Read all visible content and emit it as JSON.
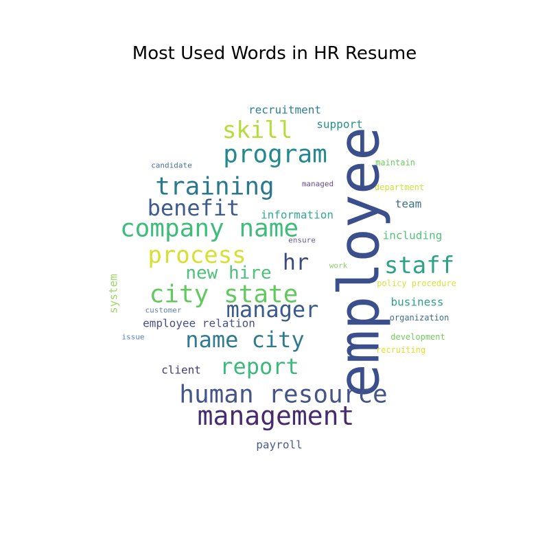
{
  "chart_data": {
    "type": "wordcloud",
    "title": "Most Used Words in HR Resume",
    "words": [
      {
        "text": "employee",
        "weight": 100,
        "color": "#3b4f8c",
        "rotated": true
      },
      {
        "text": "management",
        "weight": 52,
        "color": "#482a6e",
        "rotated": false
      },
      {
        "text": "human resource",
        "weight": 50,
        "color": "#45558a",
        "rotated": false
      },
      {
        "text": "company name",
        "weight": 50,
        "color": "#3ebd7a",
        "rotated": false
      },
      {
        "text": "program",
        "weight": 50,
        "color": "#23898e",
        "rotated": false
      },
      {
        "text": "training",
        "weight": 50,
        "color": "#2a788e",
        "rotated": false
      },
      {
        "text": "city state",
        "weight": 50,
        "color": "#61c95e",
        "rotated": false
      },
      {
        "text": "staff",
        "weight": 48,
        "color": "#2ca386",
        "rotated": false
      },
      {
        "text": "process",
        "weight": 47,
        "color": "#d6e032",
        "rotated": false
      },
      {
        "text": "skill",
        "weight": 46,
        "color": "#b6dc3a",
        "rotated": false
      },
      {
        "text": "manager",
        "weight": 46,
        "color": "#3a5a8c",
        "rotated": false
      },
      {
        "text": "report",
        "weight": 46,
        "color": "#3cba7c",
        "rotated": false
      },
      {
        "text": "name city",
        "weight": 46,
        "color": "#2f7a90",
        "rotated": false
      },
      {
        "text": "benefit",
        "weight": 44,
        "color": "#3d5b8f",
        "rotated": false
      },
      {
        "text": "hr",
        "weight": 44,
        "color": "#3b4a7c",
        "rotated": false
      },
      {
        "text": "new hire",
        "weight": 34,
        "color": "#4fc07a",
        "rotated": false
      },
      {
        "text": "employee relation",
        "weight": 24,
        "color": "#4a4f83",
        "rotated": false
      },
      {
        "text": "information",
        "weight": 22,
        "color": "#34a891",
        "rotated": false
      },
      {
        "text": "recruitment",
        "weight": 22,
        "color": "#2d7f8f",
        "rotated": false
      },
      {
        "text": "support",
        "weight": 21,
        "color": "#22928a",
        "rotated": false
      },
      {
        "text": "including",
        "weight": 21,
        "color": "#54c27a",
        "rotated": false
      },
      {
        "text": "business",
        "weight": 21,
        "color": "#2aa08a",
        "rotated": false
      },
      {
        "text": "payroll",
        "weight": 21,
        "color": "#4a5a90",
        "rotated": false
      },
      {
        "text": "client",
        "weight": 20,
        "color": "#443a70",
        "rotated": false
      },
      {
        "text": "team",
        "weight": 20,
        "color": "#3d6e8e",
        "rotated": false
      },
      {
        "text": "system",
        "weight": 19,
        "color": "#9fd66a",
        "rotated": true
      },
      {
        "text": "organization",
        "weight": 16,
        "color": "#3e6e90",
        "rotated": false
      },
      {
        "text": "development",
        "weight": 15,
        "color": "#73cc5f",
        "rotated": false
      },
      {
        "text": "maintain",
        "weight": 15,
        "color": "#6ccc5a",
        "rotated": false
      },
      {
        "text": "department",
        "weight": 15,
        "color": "#cde23a",
        "rotated": false
      },
      {
        "text": "policy procedure",
        "weight": 15,
        "color": "#d8e23a",
        "rotated": false
      },
      {
        "text": "recruiting",
        "weight": 15,
        "color": "#e2e02a",
        "rotated": false
      },
      {
        "text": "candidate",
        "weight": 14,
        "color": "#4670a0",
        "rotated": false
      },
      {
        "text": "managed",
        "weight": 14,
        "color": "#6a4b8f",
        "rotated": false
      },
      {
        "text": "ensure",
        "weight": 14,
        "color": "#6a58a0",
        "rotated": false
      },
      {
        "text": "customer",
        "weight": 14,
        "color": "#6a80b0",
        "rotated": false
      },
      {
        "text": "issue",
        "weight": 14,
        "color": "#5a7fc0",
        "rotated": false
      },
      {
        "text": "work",
        "weight": 14,
        "color": "#8ad06a",
        "rotated": false
      }
    ]
  }
}
